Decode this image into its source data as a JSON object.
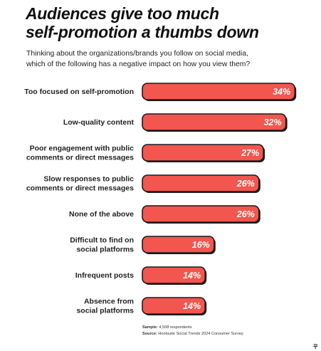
{
  "title_lines": [
    "Audiences give too much",
    "self-promotion a thumbs down"
  ],
  "subtitle_lines": [
    "Thinking about the organizations/brands you follow on social media,",
    "which of the following has a negative impact on how you view them?"
  ],
  "colors": {
    "bar_fill": "#f2564e",
    "bar_stroke": "#1b1b1b"
  },
  "chart_data": {
    "type": "bar",
    "orientation": "horizontal",
    "categories": [
      [
        "Too focused on self-promotion"
      ],
      [
        "Low-quality content"
      ],
      [
        "Poor engagement with public",
        "comments or direct messages"
      ],
      [
        "Slow responses to public",
        "comments or direct messages"
      ],
      [
        "None of the above"
      ],
      [
        "Difficult to find on",
        "social platforms"
      ],
      [
        "Infrequent posts"
      ],
      [
        "Absence from",
        "social platforms"
      ]
    ],
    "values": [
      34,
      32,
      27,
      26,
      26,
      16,
      14,
      14
    ],
    "value_labels": [
      "34%",
      "32%",
      "27%",
      "26%",
      "26%",
      "16%",
      "14%",
      "14%"
    ],
    "unit": "%",
    "title": "Audiences give too much self-promotion a thumbs down",
    "grid": false
  },
  "notes": {
    "sample_label": "Sample:",
    "sample_text": " 4,508 respondents",
    "source_label": "Source:",
    "source_text": " Hootsuite Social Trends 2024 Consumer Survey"
  },
  "logo_text": "꾸"
}
